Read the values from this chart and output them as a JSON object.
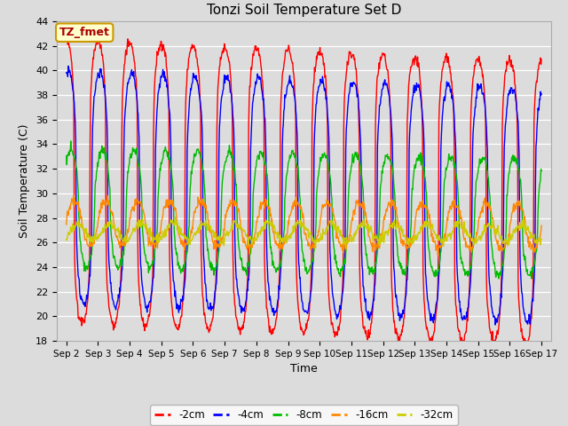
{
  "title": "Tonzi Soil Temperature Set D",
  "xlabel": "Time",
  "ylabel": "Soil Temperature (C)",
  "ylim": [
    18,
    44
  ],
  "series_colors": {
    "-2cm": "#ff0000",
    "-4cm": "#0000ff",
    "-8cm": "#00bb00",
    "-16cm": "#ff8800",
    "-32cm": "#cccc00"
  },
  "legend_label": "TZ_fmet",
  "legend_bg": "#ffffcc",
  "legend_border": "#cc9900",
  "bg_color": "#dcdcdc",
  "tick_dates": [
    "Sep 2",
    "Sep 3",
    "Sep 4",
    "Sep 5",
    "Sep 6",
    "Sep 7",
    "Sep 8",
    "Sep 9",
    "Sep 10",
    "Sep 11",
    "Sep 12",
    "Sep 13",
    "Sep 14",
    "Sep 15",
    "Sep 16",
    "Sep 17"
  ],
  "tick_positions": [
    0,
    1,
    2,
    3,
    4,
    5,
    6,
    7,
    8,
    9,
    10,
    11,
    12,
    13,
    14,
    15
  ],
  "mean_2cm": 31.0,
  "mean_4cm": 30.5,
  "mean_8cm": 28.8,
  "mean_16cm": 27.6,
  "mean_32cm": 26.9,
  "amp_2cm": 11.5,
  "amp_4cm": 9.5,
  "amp_8cm": 4.8,
  "amp_16cm": 1.8,
  "amp_32cm": 0.7,
  "phase_2cm": 0.0,
  "phase_4cm": 0.06,
  "phase_8cm": 0.14,
  "phase_16cm": 0.25,
  "phase_32cm": 0.38,
  "sharpness_2cm": 4.0,
  "sharpness_4cm": 3.0,
  "sharpness_8cm": 2.0,
  "sharpness_16cm": 1.5,
  "sharpness_32cm": 1.0,
  "trend_2cm": -0.12,
  "trend_4cm": -0.1,
  "trend_8cm": -0.05,
  "trend_16cm": -0.02,
  "trend_32cm": -0.01,
  "linewidth": 1.0,
  "n_points": 960,
  "total_days": 15.0
}
